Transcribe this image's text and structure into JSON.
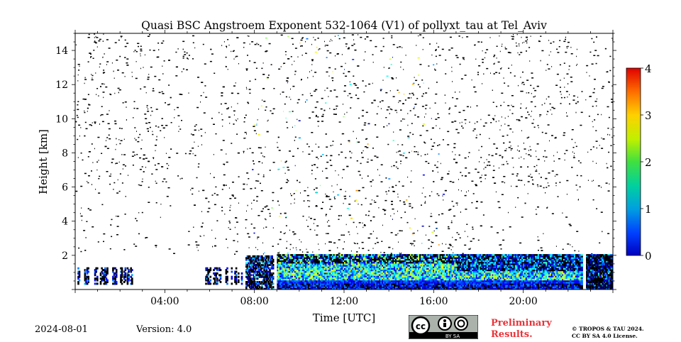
{
  "chart_data": {
    "type": "heatmap",
    "title": "Quasi BSC Angstroem Exponent 532-1064 (V1) of pollyxt_tau at Tel_Aviv",
    "xlabel": "Time [UTC]",
    "ylabel": "Height [km]",
    "x_range_hours": [
      0,
      24
    ],
    "ylim": [
      0,
      15
    ],
    "x_tick_labels": [
      "04:00",
      "08:00",
      "12:00",
      "16:00",
      "20:00"
    ],
    "x_tick_hours": [
      4,
      8,
      12,
      16,
      20
    ],
    "y_ticks": [
      2,
      4,
      6,
      8,
      10,
      12,
      14
    ],
    "colorbar": {
      "vmin": 0,
      "vmax": 4,
      "ticks": [
        0,
        1,
        2,
        3,
        4
      ],
      "colormap": "jet"
    },
    "features": {
      "aerosol_layer_top_km": 2.0,
      "sparse_low_signal_hours": [
        [
          0.1,
          2.5
        ],
        [
          5.8,
          7.4
        ]
      ],
      "dense_layer_hours": [
        9.0,
        23.9
      ]
    }
  },
  "footer": {
    "date": "2024-08-01",
    "version": "Version: 4.0",
    "preliminary_line1": "Preliminary",
    "preliminary_line2": "Results.",
    "copyright_line1": "© TROPOS & TAU 2024.",
    "copyright_line2": "CC BY SA 4.0 License.",
    "license_badge_text": "BY  SA"
  }
}
